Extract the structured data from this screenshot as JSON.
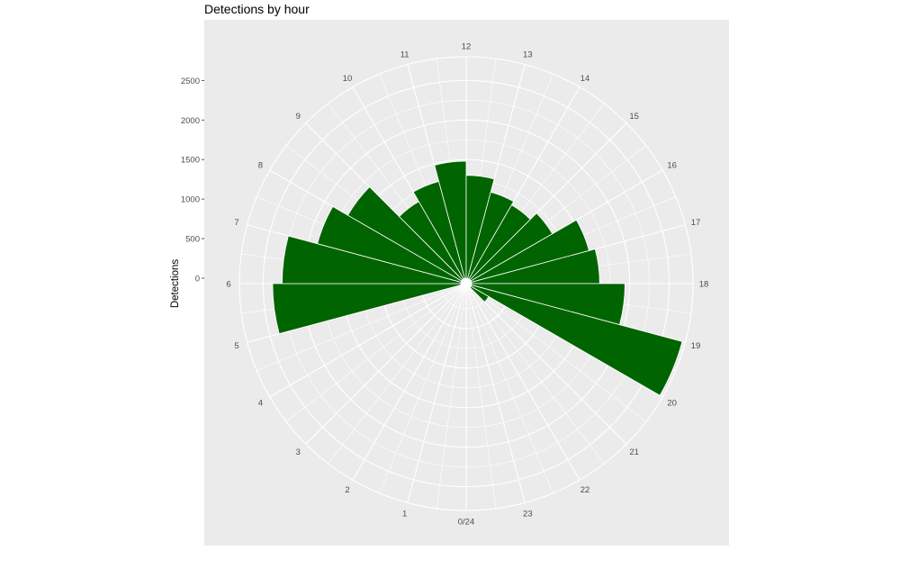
{
  "chart_data": {
    "type": "bar",
    "coord": "polar",
    "title": "Detections by hour",
    "xlabel": "",
    "ylabel": "Detections",
    "x_tick_labels": [
      "0/24",
      "1",
      "2",
      "3",
      "4",
      "5",
      "6",
      "7",
      "8",
      "9",
      "10",
      "11",
      "12",
      "13",
      "14",
      "15",
      "16",
      "17",
      "18",
      "19",
      "20",
      "21",
      "22",
      "23"
    ],
    "y_ticks": [
      0,
      500,
      1000,
      1500,
      2000,
      2500
    ],
    "y_tick_labels": [
      "0",
      "500",
      "1000",
      "1500",
      "2000",
      "2500"
    ],
    "ylim": [
      0,
      2800
    ],
    "grid": true,
    "bar_color": "#006400",
    "panel_color": "#ebebeb",
    "grid_color": "#ffffff",
    "bars": [
      {
        "hour": 5,
        "value": 2380
      },
      {
        "hour": 6,
        "value": 2260
      },
      {
        "hour": 7,
        "value": 1880
      },
      {
        "hour": 8,
        "value": 1660
      },
      {
        "hour": 9,
        "value": 1130
      },
      {
        "hour": 10,
        "value": 1270
      },
      {
        "hour": 11,
        "value": 1480
      },
      {
        "hour": 12,
        "value": 1300
      },
      {
        "hour": 13,
        "value": 1130
      },
      {
        "hour": 14,
        "value": 1080
      },
      {
        "hour": 15,
        "value": 1190
      },
      {
        "hour": 16,
        "value": 1540
      },
      {
        "hour": 17,
        "value": 1620
      },
      {
        "hour": 18,
        "value": 1940
      },
      {
        "hour": 19,
        "value": 2760
      },
      {
        "hour": 20,
        "value": 260
      }
    ]
  }
}
